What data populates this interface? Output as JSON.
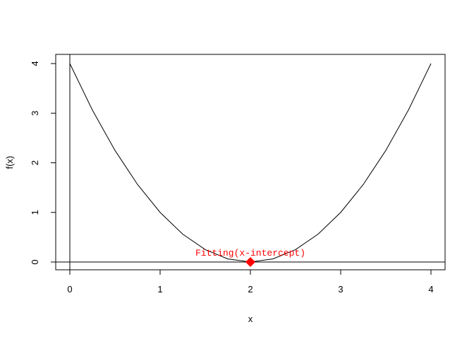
{
  "chart_data": {
    "type": "line",
    "title": "",
    "xlabel": "x",
    "ylabel": "f(x)",
    "xlim": [
      -0.16,
      4.16
    ],
    "ylim": [
      -0.16,
      4.16
    ],
    "xticks": [
      "0",
      "1",
      "2",
      "3",
      "4"
    ],
    "yticks": [
      "0",
      "1",
      "2",
      "3",
      "4"
    ],
    "grid": false,
    "series": [
      {
        "x": [
          0,
          0.25,
          0.5,
          0.75,
          1,
          1.25,
          1.5,
          1.75,
          2,
          2.25,
          2.5,
          2.75,
          3,
          3.25,
          3.5,
          3.75,
          4
        ],
        "y": [
          4,
          3.0625,
          2.25,
          1.5625,
          1,
          0.5625,
          0.25,
          0.0625,
          0,
          0.0625,
          0.25,
          0.5625,
          1,
          1.5625,
          2.25,
          3.0625,
          4
        ],
        "color": "#000000"
      }
    ],
    "reference_lines": {
      "vertical_x": 0,
      "horizontal_y": 0
    },
    "point": {
      "x": 2,
      "y": 0,
      "color": "#ff0000",
      "shape": "diamond"
    },
    "annotation": {
      "text": "Fitting(x-intercept)",
      "x": 2,
      "y": 0,
      "color": "#ff0000"
    }
  }
}
